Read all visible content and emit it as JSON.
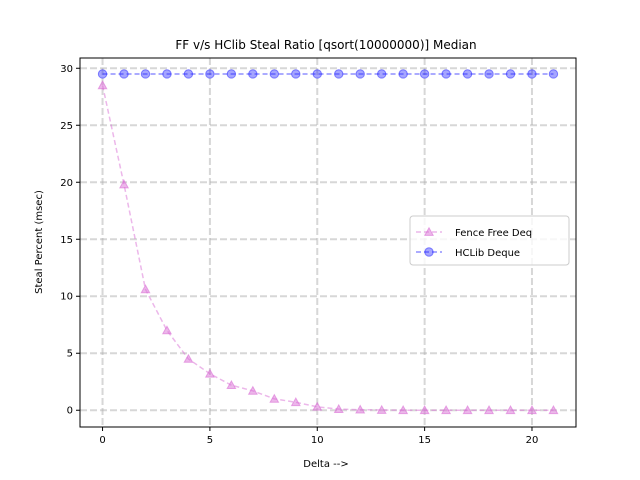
{
  "chart_data": {
    "type": "line",
    "title": "FF v/s HClib Steal Ratio [qsort(10000000)] Median",
    "xlabel": "Delta -->",
    "ylabel": "Steal Percent (msec)",
    "xlim": [
      -1.05,
      22.05
    ],
    "ylim": [
      -1.47,
      30.9
    ],
    "xticks": [
      0,
      5,
      10,
      15,
      20
    ],
    "yticks": [
      0,
      5,
      10,
      15,
      20,
      25,
      30
    ],
    "grid": true,
    "legend_position": "center-right",
    "x": [
      0,
      1,
      2,
      3,
      4,
      5,
      6,
      7,
      8,
      9,
      10,
      11,
      12,
      13,
      14,
      15,
      16,
      17,
      18,
      19,
      20,
      21
    ],
    "series": [
      {
        "name": "Fence Free Deq",
        "marker": "triangle",
        "color": "#da70d6",
        "values": [
          28.5,
          19.8,
          10.6,
          7.0,
          4.5,
          3.2,
          2.2,
          1.7,
          1.0,
          0.7,
          0.3,
          0.1,
          0.05,
          0.02,
          0.0,
          0.0,
          0.0,
          0.0,
          0.0,
          0.0,
          0.0,
          0.0
        ]
      },
      {
        "name": "HCLib Deque",
        "marker": "circle",
        "color": "#1f1fff",
        "values": [
          29.5,
          29.5,
          29.5,
          29.5,
          29.5,
          29.5,
          29.5,
          29.5,
          29.5,
          29.5,
          29.5,
          29.5,
          29.5,
          29.5,
          29.5,
          29.5,
          29.5,
          29.5,
          29.5,
          29.5,
          29.5,
          29.5
        ]
      }
    ]
  }
}
